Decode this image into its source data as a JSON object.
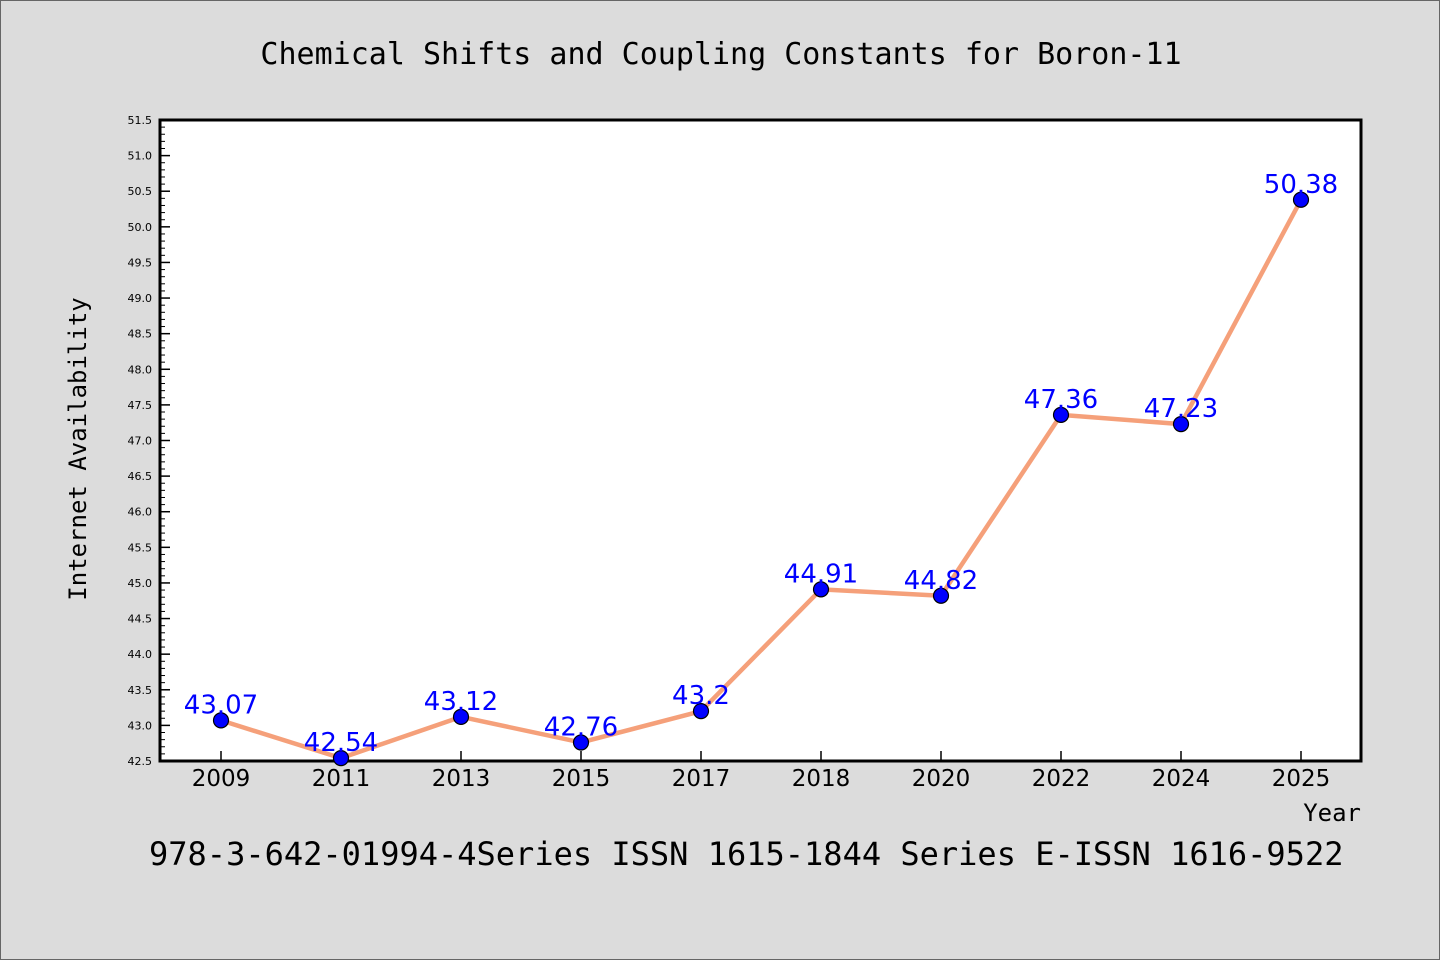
{
  "chart_data": {
    "type": "line",
    "title": "Chemical Shifts and Coupling Constants for Boron-11",
    "xlabel": "Year",
    "ylabel": "Internet Availability",
    "footer": "978-3-642-01994-4Series ISSN 1615-1844 Series E-ISSN 1616-9522",
    "categories": [
      "2009",
      "2011",
      "2013",
      "2015",
      "2017",
      "2018",
      "2020",
      "2022",
      "2024",
      "2025"
    ],
    "series": [
      {
        "values": [
          43.07,
          42.54,
          43.12,
          42.76,
          43.2,
          44.91,
          44.82,
          47.36,
          47.23,
          50.38
        ],
        "labels": [
          "43.07",
          "42.54",
          "43.12",
          "42.76",
          "43.2",
          "44.91",
          "44.82",
          "47.36",
          "47.23",
          "50.38"
        ]
      }
    ],
    "ylim": [
      42.5,
      51.5
    ],
    "yticks": [
      "42.5",
      "43.0",
      "43.5",
      "44.0",
      "44.5",
      "45.0",
      "45.5",
      "46.0",
      "46.5",
      "47.0",
      "47.5",
      "48.0",
      "48.5",
      "49.0",
      "49.5",
      "50.0",
      "50.5",
      "51.0",
      "51.5"
    ],
    "grid": false,
    "colors": {
      "line": "#f5a07a",
      "marker": "#0000ff",
      "label": "#0000ff",
      "plot_bg": "#ffffff",
      "page_bg": "#dcdcdc"
    }
  }
}
